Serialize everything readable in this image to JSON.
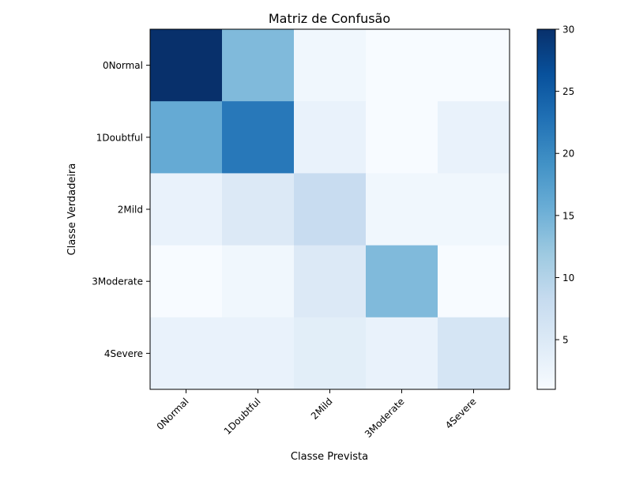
{
  "chart_data": {
    "type": "heatmap",
    "title": "Matriz de Confusão",
    "xlabel": "Classe Prevista",
    "ylabel": "Classe Verdadeira",
    "x_categories": [
      "0Normal",
      "1Doubtful",
      "2Mild",
      "3Moderate",
      "4Severe"
    ],
    "y_categories": [
      "0Normal",
      "1Doubtful",
      "2Mild",
      "3Moderate",
      "4Severe"
    ],
    "matrix": [
      [
        30,
        14,
        2,
        1,
        1
      ],
      [
        16,
        22,
        3,
        1,
        3
      ],
      [
        3,
        5,
        8,
        2,
        2
      ],
      [
        1,
        2,
        5,
        14,
        1
      ],
      [
        3,
        3,
        4,
        3,
        6
      ]
    ],
    "colorbar": {
      "vmin": 1,
      "vmax": 30,
      "ticks": [
        5,
        10,
        15,
        20,
        25,
        30
      ],
      "colormap": "Blues"
    },
    "grid": false
  }
}
